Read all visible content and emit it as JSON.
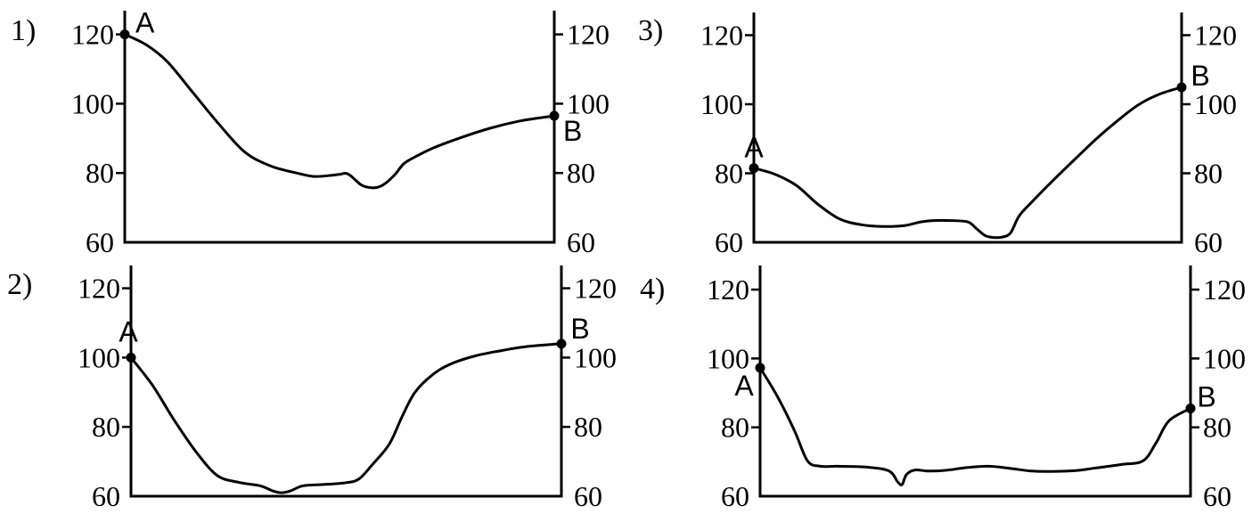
{
  "chart_data": [
    {
      "type": "line",
      "panel_label": "1)",
      "ylim": [
        60,
        120
      ],
      "yticks": [
        "60",
        "80",
        "100",
        "120"
      ],
      "start_label": "A",
      "end_label": "B",
      "x": [
        0,
        0.05,
        0.1,
        0.16,
        0.22,
        0.28,
        0.34,
        0.4,
        0.44,
        0.48,
        0.5,
        0.52,
        0.55,
        0.57,
        0.59,
        0.61,
        0.63,
        0.65,
        0.68,
        0.72,
        0.78,
        0.85,
        0.92,
        1.0
      ],
      "y": [
        120,
        117,
        112,
        103,
        94,
        86,
        82,
        80,
        79,
        79.3,
        79.6,
        79.7,
        76.6,
        75.8,
        75.9,
        77.3,
        79.7,
        82.7,
        84.9,
        87.3,
        90.1,
        92.9,
        95.0,
        96.5
      ]
    },
    {
      "type": "line",
      "panel_label": "2)",
      "ylim": [
        60,
        120
      ],
      "yticks": [
        "60",
        "80",
        "100",
        "120"
      ],
      "start_label": "A",
      "end_label": "B",
      "x": [
        0,
        0.05,
        0.1,
        0.15,
        0.2,
        0.25,
        0.3,
        0.33,
        0.35,
        0.37,
        0.4,
        0.45,
        0.5,
        0.53,
        0.56,
        0.6,
        0.63,
        0.66,
        0.7,
        0.74,
        0.8,
        0.86,
        0.92,
        1.0
      ],
      "y": [
        100,
        92,
        82,
        73,
        66,
        64,
        63,
        61.5,
        61,
        61.5,
        63,
        63.4,
        63.9,
        65,
        69,
        75,
        83,
        90,
        95,
        98,
        100.5,
        102,
        103.2,
        104
      ]
    },
    {
      "type": "line",
      "panel_label": "3)",
      "ylim": [
        60,
        120
      ],
      "yticks": [
        "60",
        "80",
        "100",
        "120"
      ],
      "start_label": "A",
      "end_label": "B",
      "x": [
        0,
        0.05,
        0.1,
        0.15,
        0.2,
        0.25,
        0.3,
        0.35,
        0.39,
        0.42,
        0.46,
        0.5,
        0.52,
        0.54,
        0.56,
        0.58,
        0.6,
        0.62,
        0.65,
        0.7,
        0.75,
        0.8,
        0.85,
        0.9,
        0.95,
        1.0
      ],
      "y": [
        81.5,
        79.7,
        76.4,
        71.0,
        66.8,
        65.1,
        64.6,
        64.8,
        65.9,
        66.3,
        66.3,
        65.9,
        64.0,
        62.0,
        61.4,
        61.5,
        62.7,
        67.6,
        71.7,
        78.0,
        84.0,
        89.9,
        95.2,
        99.9,
        103.0,
        104.9
      ]
    },
    {
      "type": "line",
      "panel_label": "4)",
      "ylim": [
        60,
        120
      ],
      "yticks": [
        "60",
        "80",
        "100",
        "120"
      ],
      "start_label": "A",
      "end_label": "B",
      "x": [
        0,
        0.04,
        0.08,
        0.11,
        0.14,
        0.18,
        0.25,
        0.3,
        0.32,
        0.33,
        0.34,
        0.36,
        0.39,
        0.43,
        0.48,
        0.53,
        0.58,
        0.63,
        0.68,
        0.73,
        0.78,
        0.84,
        0.89,
        0.92,
        0.95,
        1.0
      ],
      "y": [
        97.3,
        89,
        79,
        70.3,
        68.7,
        68.7,
        68.4,
        67.3,
        64.1,
        63.4,
        66.3,
        67.6,
        67.3,
        67.5,
        68.3,
        68.7,
        68.1,
        67.3,
        67.2,
        67.4,
        68.2,
        69.2,
        70.3,
        75.5,
        81.9,
        85.5
      ]
    }
  ]
}
